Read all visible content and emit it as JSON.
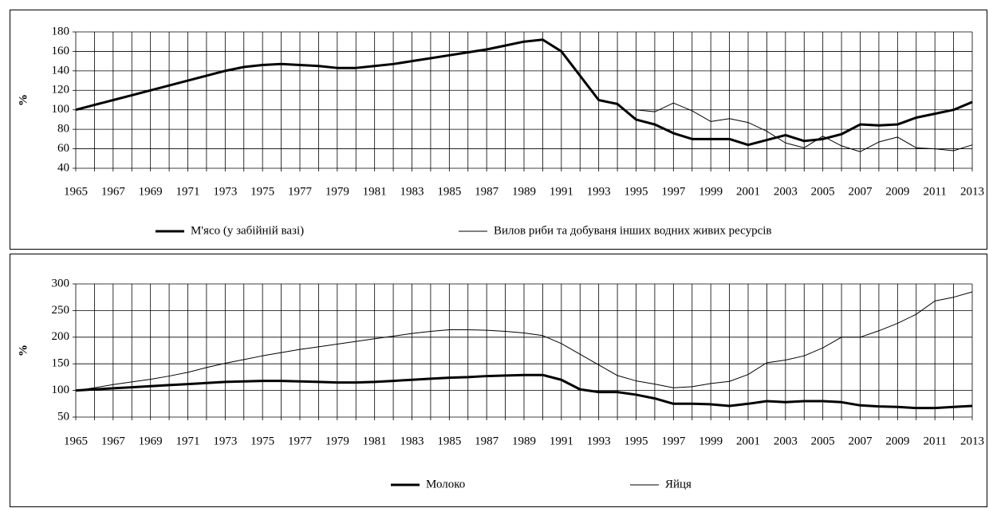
{
  "chart_data": [
    {
      "type": "line",
      "ylabel": "%",
      "x": [
        1965,
        1966,
        1967,
        1968,
        1969,
        1970,
        1971,
        1972,
        1973,
        1974,
        1975,
        1976,
        1977,
        1978,
        1979,
        1980,
        1981,
        1982,
        1983,
        1984,
        1985,
        1986,
        1987,
        1988,
        1989,
        1990,
        1991,
        1992,
        1993,
        1994,
        1995,
        1996,
        1997,
        1998,
        1999,
        2000,
        2001,
        2002,
        2003,
        2004,
        2005,
        2006,
        2007,
        2008,
        2009,
        2010,
        2011,
        2012,
        2013
      ],
      "xticks": [
        1965,
        1967,
        1969,
        1971,
        1973,
        1975,
        1977,
        1979,
        1981,
        1983,
        1985,
        1987,
        1989,
        1991,
        1993,
        1995,
        1997,
        1999,
        2001,
        2003,
        2005,
        2007,
        2009,
        2011,
        2013
      ],
      "ylim": [
        40,
        180
      ],
      "yticks": [
        40,
        60,
        80,
        100,
        120,
        140,
        160,
        180
      ],
      "grid": true,
      "legend": "bottom",
      "series": [
        {
          "name": "М'ясо (у забійній вазі)",
          "color": "#000000",
          "line_width": 3,
          "values": [
            100,
            105,
            110,
            115,
            120,
            125,
            130,
            135,
            140,
            144,
            146,
            147,
            146,
            145,
            143,
            143,
            145,
            147,
            150,
            153,
            156,
            159,
            162,
            166,
            170,
            172,
            160,
            135,
            110,
            106,
            90,
            85,
            76,
            70,
            70,
            70,
            64,
            69,
            74,
            68,
            70,
            75,
            85,
            84,
            85,
            92,
            96,
            100,
            108
          ]
        },
        {
          "name": "Вилов риби та добуваня інших водних живих ресурсів",
          "color": "#000000",
          "line_width": 1,
          "values": [
            null,
            null,
            null,
            null,
            null,
            null,
            null,
            null,
            null,
            null,
            null,
            null,
            null,
            null,
            null,
            null,
            null,
            null,
            null,
            null,
            null,
            null,
            null,
            null,
            null,
            null,
            null,
            null,
            null,
            null,
            100,
            98,
            107,
            99,
            88,
            91,
            87,
            78,
            66,
            61,
            73,
            63,
            57,
            67,
            72,
            61,
            60,
            58,
            64
          ]
        }
      ]
    },
    {
      "type": "line",
      "ylabel": "%",
      "x": [
        1965,
        1966,
        1967,
        1968,
        1969,
        1970,
        1971,
        1972,
        1973,
        1974,
        1975,
        1976,
        1977,
        1978,
        1979,
        1980,
        1981,
        1982,
        1983,
        1984,
        1985,
        1986,
        1987,
        1988,
        1989,
        1990,
        1991,
        1992,
        1993,
        1994,
        1995,
        1996,
        1997,
        1998,
        1999,
        2000,
        2001,
        2002,
        2003,
        2004,
        2005,
        2006,
        2007,
        2008,
        2009,
        2010,
        2011,
        2012,
        2013
      ],
      "xticks": [
        1965,
        1967,
        1969,
        1971,
        1973,
        1975,
        1977,
        1979,
        1981,
        1983,
        1985,
        1987,
        1989,
        1991,
        1993,
        1995,
        1997,
        1999,
        2001,
        2003,
        2005,
        2007,
        2009,
        2011,
        2013
      ],
      "ylim": [
        50,
        300
      ],
      "yticks": [
        50,
        100,
        150,
        200,
        250,
        300
      ],
      "grid": true,
      "legend": "bottom",
      "series": [
        {
          "name": "Молоко",
          "color": "#000000",
          "line_width": 3,
          "values": [
            100,
            102,
            104,
            106,
            108,
            110,
            112,
            114,
            116,
            117,
            118,
            118,
            117,
            116,
            115,
            115,
            116,
            118,
            120,
            122,
            124,
            125,
            127,
            128,
            129,
            129,
            120,
            102,
            97,
            97,
            92,
            85,
            75,
            75,
            74,
            71,
            75,
            80,
            78,
            80,
            80,
            78,
            72,
            70,
            69,
            67,
            67,
            69,
            71
          ]
        },
        {
          "name": "Яйця",
          "color": "#000000",
          "line_width": 1,
          "values": [
            100,
            105,
            111,
            116,
            121,
            127,
            134,
            143,
            151,
            158,
            165,
            171,
            177,
            182,
            187,
            192,
            197,
            202,
            207,
            211,
            214,
            214,
            213,
            211,
            208,
            203,
            188,
            168,
            148,
            128,
            118,
            112,
            105,
            107,
            113,
            117,
            130,
            152,
            157,
            165,
            180,
            200,
            200,
            212,
            226,
            243,
            268,
            275,
            285
          ]
        }
      ]
    }
  ]
}
